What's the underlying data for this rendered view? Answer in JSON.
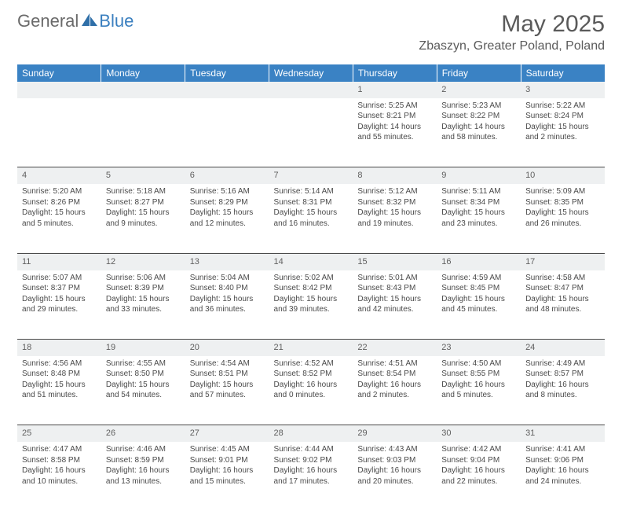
{
  "brand": {
    "text1": "General",
    "text2": "Blue"
  },
  "title": "May 2025",
  "location": "Zbaszyn, Greater Poland, Poland",
  "colors": {
    "header_bg": "#3a82c4",
    "header_text": "#ffffff",
    "daynum_bg": "#eef0f1",
    "rule": "#4a4a4a",
    "text": "#4a4a4a",
    "brand_gray": "#6a6a6a",
    "brand_blue": "#3a7fbf"
  },
  "typography": {
    "title_fontsize": 30,
    "location_fontsize": 16,
    "header_fontsize": 12,
    "daynum_fontsize": 11,
    "cell_fontsize": 10
  },
  "day_headers": [
    "Sunday",
    "Monday",
    "Tuesday",
    "Wednesday",
    "Thursday",
    "Friday",
    "Saturday"
  ],
  "weeks": [
    [
      null,
      null,
      null,
      null,
      {
        "n": "1",
        "sr": "Sunrise: 5:25 AM",
        "ss": "Sunset: 8:21 PM",
        "dl": "Daylight: 14 hours and 55 minutes."
      },
      {
        "n": "2",
        "sr": "Sunrise: 5:23 AM",
        "ss": "Sunset: 8:22 PM",
        "dl": "Daylight: 14 hours and 58 minutes."
      },
      {
        "n": "3",
        "sr": "Sunrise: 5:22 AM",
        "ss": "Sunset: 8:24 PM",
        "dl": "Daylight: 15 hours and 2 minutes."
      }
    ],
    [
      {
        "n": "4",
        "sr": "Sunrise: 5:20 AM",
        "ss": "Sunset: 8:26 PM",
        "dl": "Daylight: 15 hours and 5 minutes."
      },
      {
        "n": "5",
        "sr": "Sunrise: 5:18 AM",
        "ss": "Sunset: 8:27 PM",
        "dl": "Daylight: 15 hours and 9 minutes."
      },
      {
        "n": "6",
        "sr": "Sunrise: 5:16 AM",
        "ss": "Sunset: 8:29 PM",
        "dl": "Daylight: 15 hours and 12 minutes."
      },
      {
        "n": "7",
        "sr": "Sunrise: 5:14 AM",
        "ss": "Sunset: 8:31 PM",
        "dl": "Daylight: 15 hours and 16 minutes."
      },
      {
        "n": "8",
        "sr": "Sunrise: 5:12 AM",
        "ss": "Sunset: 8:32 PM",
        "dl": "Daylight: 15 hours and 19 minutes."
      },
      {
        "n": "9",
        "sr": "Sunrise: 5:11 AM",
        "ss": "Sunset: 8:34 PM",
        "dl": "Daylight: 15 hours and 23 minutes."
      },
      {
        "n": "10",
        "sr": "Sunrise: 5:09 AM",
        "ss": "Sunset: 8:35 PM",
        "dl": "Daylight: 15 hours and 26 minutes."
      }
    ],
    [
      {
        "n": "11",
        "sr": "Sunrise: 5:07 AM",
        "ss": "Sunset: 8:37 PM",
        "dl": "Daylight: 15 hours and 29 minutes."
      },
      {
        "n": "12",
        "sr": "Sunrise: 5:06 AM",
        "ss": "Sunset: 8:39 PM",
        "dl": "Daylight: 15 hours and 33 minutes."
      },
      {
        "n": "13",
        "sr": "Sunrise: 5:04 AM",
        "ss": "Sunset: 8:40 PM",
        "dl": "Daylight: 15 hours and 36 minutes."
      },
      {
        "n": "14",
        "sr": "Sunrise: 5:02 AM",
        "ss": "Sunset: 8:42 PM",
        "dl": "Daylight: 15 hours and 39 minutes."
      },
      {
        "n": "15",
        "sr": "Sunrise: 5:01 AM",
        "ss": "Sunset: 8:43 PM",
        "dl": "Daylight: 15 hours and 42 minutes."
      },
      {
        "n": "16",
        "sr": "Sunrise: 4:59 AM",
        "ss": "Sunset: 8:45 PM",
        "dl": "Daylight: 15 hours and 45 minutes."
      },
      {
        "n": "17",
        "sr": "Sunrise: 4:58 AM",
        "ss": "Sunset: 8:47 PM",
        "dl": "Daylight: 15 hours and 48 minutes."
      }
    ],
    [
      {
        "n": "18",
        "sr": "Sunrise: 4:56 AM",
        "ss": "Sunset: 8:48 PM",
        "dl": "Daylight: 15 hours and 51 minutes."
      },
      {
        "n": "19",
        "sr": "Sunrise: 4:55 AM",
        "ss": "Sunset: 8:50 PM",
        "dl": "Daylight: 15 hours and 54 minutes."
      },
      {
        "n": "20",
        "sr": "Sunrise: 4:54 AM",
        "ss": "Sunset: 8:51 PM",
        "dl": "Daylight: 15 hours and 57 minutes."
      },
      {
        "n": "21",
        "sr": "Sunrise: 4:52 AM",
        "ss": "Sunset: 8:52 PM",
        "dl": "Daylight: 16 hours and 0 minutes."
      },
      {
        "n": "22",
        "sr": "Sunrise: 4:51 AM",
        "ss": "Sunset: 8:54 PM",
        "dl": "Daylight: 16 hours and 2 minutes."
      },
      {
        "n": "23",
        "sr": "Sunrise: 4:50 AM",
        "ss": "Sunset: 8:55 PM",
        "dl": "Daylight: 16 hours and 5 minutes."
      },
      {
        "n": "24",
        "sr": "Sunrise: 4:49 AM",
        "ss": "Sunset: 8:57 PM",
        "dl": "Daylight: 16 hours and 8 minutes."
      }
    ],
    [
      {
        "n": "25",
        "sr": "Sunrise: 4:47 AM",
        "ss": "Sunset: 8:58 PM",
        "dl": "Daylight: 16 hours and 10 minutes."
      },
      {
        "n": "26",
        "sr": "Sunrise: 4:46 AM",
        "ss": "Sunset: 8:59 PM",
        "dl": "Daylight: 16 hours and 13 minutes."
      },
      {
        "n": "27",
        "sr": "Sunrise: 4:45 AM",
        "ss": "Sunset: 9:01 PM",
        "dl": "Daylight: 16 hours and 15 minutes."
      },
      {
        "n": "28",
        "sr": "Sunrise: 4:44 AM",
        "ss": "Sunset: 9:02 PM",
        "dl": "Daylight: 16 hours and 17 minutes."
      },
      {
        "n": "29",
        "sr": "Sunrise: 4:43 AM",
        "ss": "Sunset: 9:03 PM",
        "dl": "Daylight: 16 hours and 20 minutes."
      },
      {
        "n": "30",
        "sr": "Sunrise: 4:42 AM",
        "ss": "Sunset: 9:04 PM",
        "dl": "Daylight: 16 hours and 22 minutes."
      },
      {
        "n": "31",
        "sr": "Sunrise: 4:41 AM",
        "ss": "Sunset: 9:06 PM",
        "dl": "Daylight: 16 hours and 24 minutes."
      }
    ]
  ]
}
